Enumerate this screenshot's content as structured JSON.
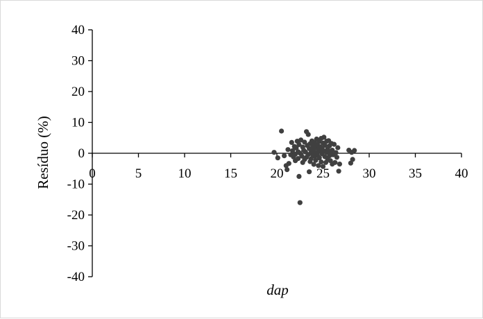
{
  "chart_data": {
    "type": "scatter",
    "xlabel": "dap",
    "ylabel": "Resíduo (%)",
    "xlim": [
      0,
      40
    ],
    "ylim": [
      -40,
      40
    ],
    "x_ticks": [
      0,
      5,
      10,
      15,
      20,
      25,
      30,
      35,
      40
    ],
    "y_ticks": [
      -40,
      -30,
      -20,
      -10,
      0,
      10,
      20,
      30,
      40
    ],
    "grid": false,
    "legend": "none",
    "point_color": "#404040",
    "points": [
      [
        19.7,
        0.3
      ],
      [
        20.1,
        -1.5
      ],
      [
        20.5,
        7.2
      ],
      [
        20.8,
        -0.8
      ],
      [
        21.0,
        -4.0
      ],
      [
        21.1,
        -5.3
      ],
      [
        21.2,
        1.2
      ],
      [
        21.3,
        -3.3
      ],
      [
        21.5,
        -0.5
      ],
      [
        21.6,
        3.5
      ],
      [
        21.7,
        0.8
      ],
      [
        21.8,
        -1.2
      ],
      [
        21.9,
        2.2
      ],
      [
        22.0,
        -0.3
      ],
      [
        22.0,
        -2.4
      ],
      [
        22.1,
        1.7
      ],
      [
        22.2,
        3.9
      ],
      [
        22.3,
        0.5
      ],
      [
        22.3,
        -1.7
      ],
      [
        22.4,
        -7.5
      ],
      [
        22.4,
        2.8
      ],
      [
        22.5,
        -16.0
      ],
      [
        22.5,
        0.0
      ],
      [
        22.6,
        4.3
      ],
      [
        22.7,
        -0.9
      ],
      [
        22.8,
        2.0
      ],
      [
        22.8,
        -3.0
      ],
      [
        22.9,
        1.0
      ],
      [
        23.0,
        -2.0
      ],
      [
        23.0,
        3.6
      ],
      [
        23.1,
        0.4
      ],
      [
        23.2,
        7.0
      ],
      [
        23.2,
        -1.3
      ],
      [
        23.3,
        2.5
      ],
      [
        23.4,
        6.1
      ],
      [
        23.4,
        -0.4
      ],
      [
        23.5,
        -6.0
      ],
      [
        23.5,
        1.5
      ],
      [
        23.6,
        -2.7
      ],
      [
        23.6,
        3.1
      ],
      [
        23.7,
        0.2
      ],
      [
        23.7,
        -1.8
      ],
      [
        23.8,
        4.0
      ],
      [
        23.8,
        1.1
      ],
      [
        23.9,
        -0.6
      ],
      [
        23.9,
        2.3
      ],
      [
        24.0,
        -3.6
      ],
      [
        24.0,
        0.9
      ],
      [
        24.1,
        3.4
      ],
      [
        24.1,
        -1.0
      ],
      [
        24.2,
        1.9
      ],
      [
        24.2,
        -2.3
      ],
      [
        24.3,
        4.6
      ],
      [
        24.3,
        0.1
      ],
      [
        24.4,
        2.7
      ],
      [
        24.4,
        -0.7
      ],
      [
        24.5,
        -4.0
      ],
      [
        24.5,
        1.3
      ],
      [
        24.6,
        3.8
      ],
      [
        24.6,
        -1.5
      ],
      [
        24.7,
        0.6
      ],
      [
        24.7,
        2.1
      ],
      [
        24.8,
        4.8
      ],
      [
        24.8,
        -2.8
      ],
      [
        24.9,
        1.6
      ],
      [
        24.9,
        -0.2
      ],
      [
        25.0,
        3.3
      ],
      [
        25.0,
        -4.3
      ],
      [
        25.1,
        0.7
      ],
      [
        25.1,
        5.2
      ],
      [
        25.2,
        -1.1
      ],
      [
        25.2,
        2.6
      ],
      [
        25.3,
        -3.0
      ],
      [
        25.4,
        0.3
      ],
      [
        25.4,
        3.9
      ],
      [
        25.5,
        -1.9
      ],
      [
        25.5,
        1.4
      ],
      [
        25.6,
        4.1
      ],
      [
        25.7,
        -0.8
      ],
      [
        25.7,
        2.4
      ],
      [
        25.8,
        -2.4
      ],
      [
        25.8,
        0.5
      ],
      [
        25.9,
        3.2
      ],
      [
        26.0,
        -3.5
      ],
      [
        26.0,
        1.0
      ],
      [
        26.1,
        -0.5
      ],
      [
        26.2,
        2.9
      ],
      [
        26.3,
        -3.0
      ],
      [
        26.4,
        0.2
      ],
      [
        26.5,
        -1.3
      ],
      [
        26.6,
        1.8
      ],
      [
        26.7,
        -5.8
      ],
      [
        26.8,
        -3.5
      ],
      [
        27.8,
        1.0
      ],
      [
        28.0,
        -3.2
      ],
      [
        28.1,
        0.3
      ],
      [
        28.2,
        -2.0
      ],
      [
        28.4,
        0.9
      ]
    ]
  }
}
